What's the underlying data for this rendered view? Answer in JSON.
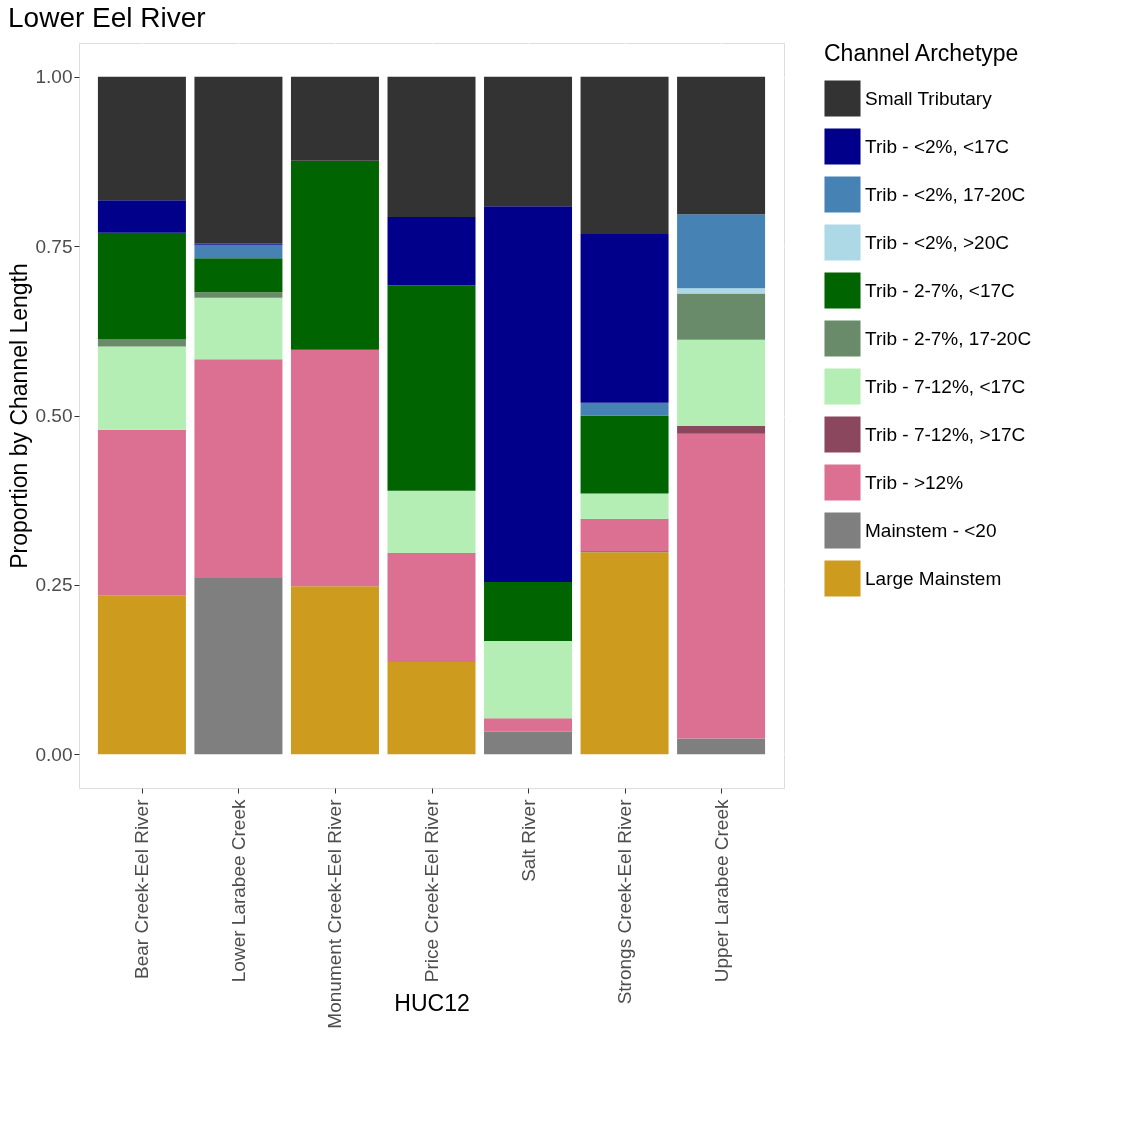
{
  "chart_data": {
    "type": "bar",
    "title": "Lower Eel River",
    "xlabel": "HUC12",
    "ylabel": "Proportion by Channel Length",
    "legend_title": "Channel Archetype",
    "stacked": true,
    "grid": true,
    "legend": "right",
    "categories": [
      "Bear Creek-Eel River",
      "Lower Larabee Creek",
      "Monument Creek-Eel River",
      "Price Creek-Eel River",
      "Salt River",
      "Strongs Creek-Eel River",
      "Upper Larabee Creek"
    ],
    "ylim": [
      -0.05,
      1.05
    ],
    "yticks": [
      {
        "value": 0,
        "label": "0.00"
      },
      {
        "value": 0.25,
        "label": "0.25"
      },
      {
        "value": 0.5,
        "label": "0.50"
      },
      {
        "value": 0.75,
        "label": "0.75"
      },
      {
        "value": 1,
        "label": "1.00"
      }
    ],
    "series": [
      {
        "name": "Large Mainstem",
        "color": "#cd9b1d",
        "values": [
          0.234,
          null,
          0.248,
          0.136,
          null,
          0.298,
          null
        ]
      },
      {
        "name": "Mainstem - <20",
        "color": "#7f7f7f",
        "values": [
          null,
          0.26,
          null,
          null,
          0.033,
          0.002,
          0.023
        ]
      },
      {
        "name": "Trib - >12%",
        "color": "#db7093",
        "values": [
          0.245,
          0.323,
          0.349,
          0.161,
          0.02,
          0.047,
          0.45
        ]
      },
      {
        "name": "Trib - 7-12%, >17C",
        "color": "#8b475d",
        "values": [
          null,
          null,
          null,
          null,
          null,
          null,
          0.012
        ]
      },
      {
        "name": "Trib - 7-12%, <17C",
        "color": "#b4eeb4",
        "values": [
          0.123,
          0.091,
          null,
          0.092,
          0.114,
          0.038,
          0.127
        ]
      },
      {
        "name": "Trib - 2-7%, 17-20C",
        "color": "#698b69",
        "values": [
          0.011,
          0.008,
          null,
          null,
          null,
          null,
          0.068
        ]
      },
      {
        "name": "Trib - 2-7%, <17C",
        "color": "#006400",
        "values": [
          0.157,
          0.05,
          0.279,
          0.303,
          0.087,
          0.115,
          null
        ]
      },
      {
        "name": "Trib - <2%, >20C",
        "color": "#add8e6",
        "values": [
          null,
          null,
          null,
          null,
          null,
          null,
          0.008
        ]
      },
      {
        "name": "Trib - <2%, 17-20C",
        "color": "#4682b4",
        "values": [
          null,
          0.02,
          null,
          null,
          null,
          0.019,
          0.109
        ]
      },
      {
        "name": "Trib - <2%, <17C",
        "color": "#00008b",
        "values": [
          0.048,
          0.002,
          null,
          0.101,
          0.555,
          0.249,
          null
        ]
      },
      {
        "name": "Small Tributary",
        "color": "#333333",
        "values": [
          0.182,
          0.246,
          0.124,
          0.207,
          0.191,
          0.232,
          0.203
        ]
      }
    ]
  }
}
